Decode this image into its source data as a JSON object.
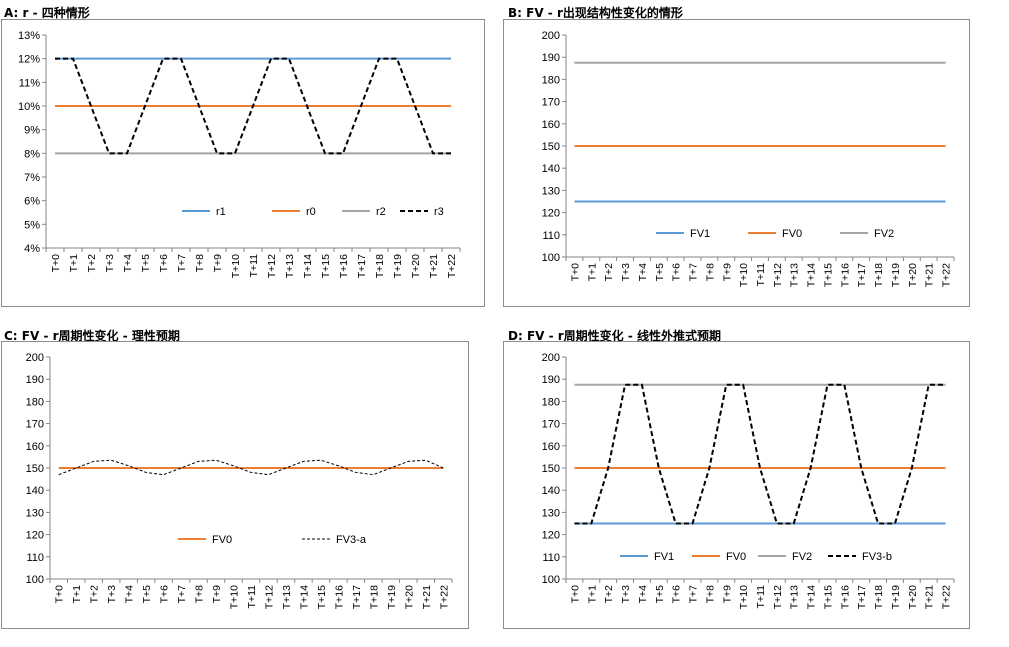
{
  "ticks": [
    "T+0",
    "T+1",
    "T+2",
    "T+3",
    "T+4",
    "T+5",
    "T+6",
    "T+7",
    "T+8",
    "T+9",
    "T+10",
    "T+11",
    "T+12",
    "T+13",
    "T+14",
    "T+15",
    "T+16",
    "T+17",
    "T+18",
    "T+19",
    "T+20",
    "T+21",
    "T+22"
  ],
  "colors": {
    "blue": "#5b9bd5",
    "orange": "#ed7d31",
    "gray": "#a5a5a5",
    "black": "#000000"
  },
  "chart_data": [
    {
      "id": "A",
      "type": "line",
      "title": "A:  r  -  四种情形",
      "ylim": [
        0.04,
        0.13
      ],
      "yticks": [
        "4%",
        "5%",
        "6%",
        "7%",
        "8%",
        "9%",
        "10%",
        "11%",
        "12%",
        "13%"
      ],
      "ytick_values": [
        0.04,
        0.05,
        0.06,
        0.07,
        0.08,
        0.09,
        0.1,
        0.11,
        0.12,
        0.13
      ],
      "legend_position": "bottom-right",
      "series": [
        {
          "name": "r1",
          "color": "#5b9bd5",
          "dash": "solid",
          "values": [
            0.12,
            0.12,
            0.12,
            0.12,
            0.12,
            0.12,
            0.12,
            0.12,
            0.12,
            0.12,
            0.12,
            0.12,
            0.12,
            0.12,
            0.12,
            0.12,
            0.12,
            0.12,
            0.12,
            0.12,
            0.12,
            0.12,
            0.12
          ]
        },
        {
          "name": "r0",
          "color": "#ed7d31",
          "dash": "solid",
          "values": [
            0.1,
            0.1,
            0.1,
            0.1,
            0.1,
            0.1,
            0.1,
            0.1,
            0.1,
            0.1,
            0.1,
            0.1,
            0.1,
            0.1,
            0.1,
            0.1,
            0.1,
            0.1,
            0.1,
            0.1,
            0.1,
            0.1,
            0.1
          ]
        },
        {
          "name": "r2",
          "color": "#a5a5a5",
          "dash": "solid",
          "values": [
            0.08,
            0.08,
            0.08,
            0.08,
            0.08,
            0.08,
            0.08,
            0.08,
            0.08,
            0.08,
            0.08,
            0.08,
            0.08,
            0.08,
            0.08,
            0.08,
            0.08,
            0.08,
            0.08,
            0.08,
            0.08,
            0.08,
            0.08
          ]
        },
        {
          "name": "r3",
          "color": "#000000",
          "dash": "bold-dash",
          "values": [
            0.12,
            0.12,
            0.1,
            0.08,
            0.08,
            0.1,
            0.12,
            0.12,
            0.1,
            0.08,
            0.08,
            0.1,
            0.12,
            0.12,
            0.1,
            0.08,
            0.08,
            0.1,
            0.12,
            0.12,
            0.1,
            0.08,
            0.08
          ]
        }
      ]
    },
    {
      "id": "B",
      "type": "line",
      "title": "B: FV  -  r出现结构性变化的情形",
      "ylim": [
        100,
        200
      ],
      "yticks": [
        "100",
        "110",
        "120",
        "130",
        "140",
        "150",
        "160",
        "170",
        "180",
        "190",
        "200"
      ],
      "ytick_values": [
        100,
        110,
        120,
        130,
        140,
        150,
        160,
        170,
        180,
        190,
        200
      ],
      "legend_position": "bottom-center",
      "series": [
        {
          "name": "FV1",
          "color": "#5b9bd5",
          "dash": "solid",
          "values": [
            125,
            125,
            125,
            125,
            125,
            125,
            125,
            125,
            125,
            125,
            125,
            125,
            125,
            125,
            125,
            125,
            125,
            125,
            125,
            125,
            125,
            125,
            125
          ]
        },
        {
          "name": "FV0",
          "color": "#ed7d31",
          "dash": "solid",
          "values": [
            150,
            150,
            150,
            150,
            150,
            150,
            150,
            150,
            150,
            150,
            150,
            150,
            150,
            150,
            150,
            150,
            150,
            150,
            150,
            150,
            150,
            150,
            150
          ]
        },
        {
          "name": "FV2",
          "color": "#a5a5a5",
          "dash": "solid",
          "values": [
            187.5,
            187.5,
            187.5,
            187.5,
            187.5,
            187.5,
            187.5,
            187.5,
            187.5,
            187.5,
            187.5,
            187.5,
            187.5,
            187.5,
            187.5,
            187.5,
            187.5,
            187.5,
            187.5,
            187.5,
            187.5,
            187.5,
            187.5
          ]
        }
      ]
    },
    {
      "id": "C",
      "type": "line",
      "title": "C: FV  -  r周期性变化  -  理性预期",
      "ylim": [
        100,
        200
      ],
      "yticks": [
        "100",
        "110",
        "120",
        "130",
        "140",
        "150",
        "160",
        "170",
        "180",
        "190",
        "200"
      ],
      "ytick_values": [
        100,
        110,
        120,
        130,
        140,
        150,
        160,
        170,
        180,
        190,
        200
      ],
      "legend_position": "bottom-center",
      "series": [
        {
          "name": "FV0",
          "color": "#ed7d31",
          "dash": "solid",
          "values": [
            150,
            150,
            150,
            150,
            150,
            150,
            150,
            150,
            150,
            150,
            150,
            150,
            150,
            150,
            150,
            150,
            150,
            150,
            150,
            150,
            150,
            150,
            150
          ]
        },
        {
          "name": "FV3-a",
          "color": "#000000",
          "dash": "thin-dash",
          "values": [
            147,
            150,
            153,
            153.5,
            151,
            148,
            147,
            150,
            153,
            153.5,
            151,
            148,
            147,
            150,
            153,
            153.5,
            151,
            148,
            147,
            150,
            153,
            153.5,
            150
          ]
        }
      ]
    },
    {
      "id": "D",
      "type": "line",
      "title": "D:  FV  -  r周期性变化  -  线性外推式预期",
      "ylim": [
        100,
        200
      ],
      "yticks": [
        "100",
        "110",
        "120",
        "130",
        "140",
        "150",
        "160",
        "170",
        "180",
        "190",
        "200"
      ],
      "ytick_values": [
        100,
        110,
        120,
        130,
        140,
        150,
        160,
        170,
        180,
        190,
        200
      ],
      "legend_position": "bottom-center",
      "series": [
        {
          "name": "FV1",
          "color": "#5b9bd5",
          "dash": "solid",
          "values": [
            125,
            125,
            125,
            125,
            125,
            125,
            125,
            125,
            125,
            125,
            125,
            125,
            125,
            125,
            125,
            125,
            125,
            125,
            125,
            125,
            125,
            125,
            125
          ]
        },
        {
          "name": "FV0",
          "color": "#ed7d31",
          "dash": "solid",
          "values": [
            150,
            150,
            150,
            150,
            150,
            150,
            150,
            150,
            150,
            150,
            150,
            150,
            150,
            150,
            150,
            150,
            150,
            150,
            150,
            150,
            150,
            150,
            150
          ]
        },
        {
          "name": "FV2",
          "color": "#a5a5a5",
          "dash": "solid",
          "values": [
            187.5,
            187.5,
            187.5,
            187.5,
            187.5,
            187.5,
            187.5,
            187.5,
            187.5,
            187.5,
            187.5,
            187.5,
            187.5,
            187.5,
            187.5,
            187.5,
            187.5,
            187.5,
            187.5,
            187.5,
            187.5,
            187.5,
            187.5
          ]
        },
        {
          "name": "FV3-b",
          "color": "#000000",
          "dash": "bold-dash",
          "values": [
            125,
            125,
            150,
            187.5,
            187.5,
            150,
            125,
            125,
            150,
            187.5,
            187.5,
            150,
            125,
            125,
            150,
            187.5,
            187.5,
            150,
            125,
            125,
            150,
            187.5,
            187.5
          ]
        }
      ]
    }
  ]
}
